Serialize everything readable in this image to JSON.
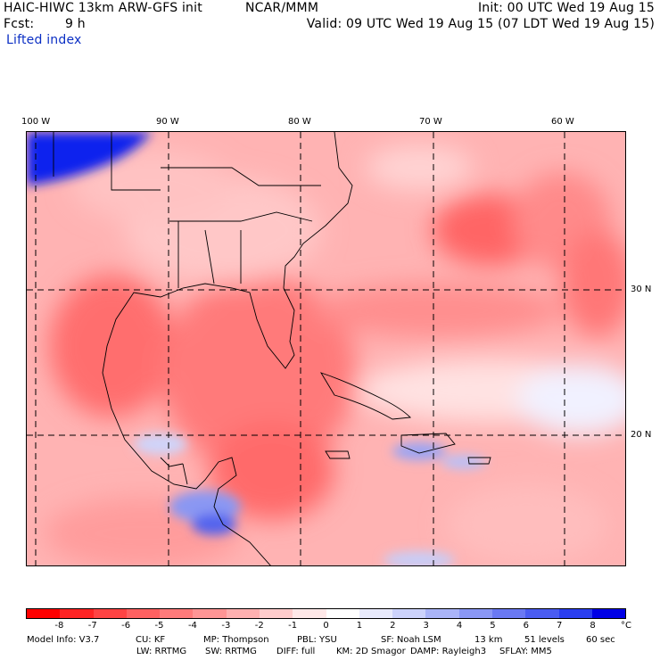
{
  "header": {
    "title": "HAIC-HIWC 13km ARW-GFS init",
    "org": "NCAR/MMM",
    "init": "Init: 00 UTC Wed 19 Aug 15",
    "fcst_label": "Fcst:",
    "fcst_value": "9 h",
    "valid": "Valid: 09 UTC Wed 19 Aug 15 (07 LDT Wed 19 Aug 15)",
    "field": "Lifted index"
  },
  "map": {
    "lon_ticks": [
      "100 W",
      "90 W",
      "80 W",
      "70 W",
      "60 W"
    ],
    "lat_ticks": [
      "30 N",
      "20 N"
    ],
    "projection_grid": "dashed",
    "colors": {
      "strong_negative": "#ff6b6b",
      "moderate_negative": "#ff9c9c",
      "weak_negative": "#ffd6d6",
      "neutral": "#ffffff",
      "positive_low": "#c6cdf7",
      "positive_mid": "#7f8cf0",
      "positive_high": "#1020f0"
    }
  },
  "colorbar": {
    "labels": [
      "-8",
      "-7",
      "-6",
      "-5",
      "-4",
      "-3",
      "-2",
      "-1",
      "0",
      "1",
      "2",
      "3",
      "4",
      "5",
      "6",
      "7",
      "8",
      "°C"
    ],
    "colors": [
      "#ff0000",
      "#ff2424",
      "#ff4444",
      "#ff6161",
      "#ff7b7b",
      "#ff9595",
      "#ffb0b0",
      "#ffcccc",
      "#ffe8e8",
      "#ffffff",
      "#e8eafc",
      "#ccd2fb",
      "#aab4f8",
      "#8a97f5",
      "#6a79f3",
      "#4a5cf1",
      "#2a3ef0",
      "#0000e6"
    ]
  },
  "footer": {
    "line1": [
      "Model Info: V3.7",
      "CU: KF",
      "MP: Thompson",
      "PBL: YSU",
      "SF: Noah LSM",
      "13 km",
      "51 levels",
      "60 sec"
    ],
    "line2": [
      "LW: RRTMG",
      "SW: RRTMG",
      "DIFF: full",
      "KM: 2D Smagor",
      "DAMP: Rayleigh3",
      "SFLAY: MM5"
    ]
  }
}
